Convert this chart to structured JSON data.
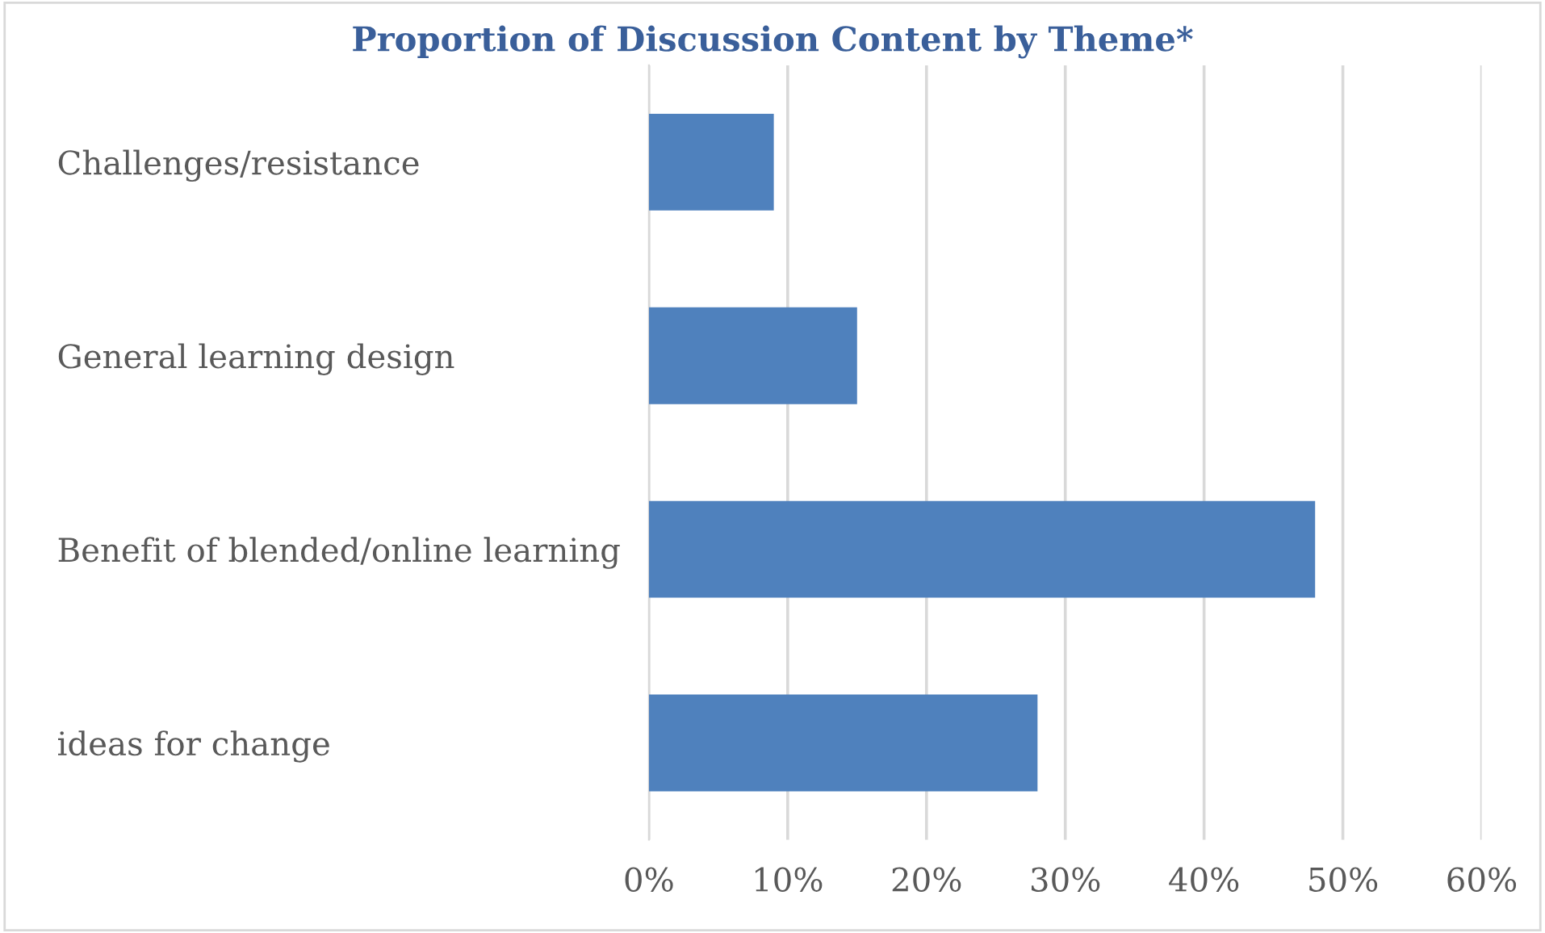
{
  "chart_data": {
    "type": "bar",
    "orientation": "horizontal",
    "title": "Proportion of Discussion Content by Theme*",
    "categories": [
      "Challenges/resistance",
      "General learning design",
      "Benefit of blended/online learning",
      "ideas for change"
    ],
    "values": [
      9,
      15,
      48,
      28
    ],
    "color": "#4f81bd",
    "xlim": [
      0,
      60
    ],
    "xticks": [
      {
        "value": 0,
        "label": "0%"
      },
      {
        "value": 10,
        "label": "10%"
      },
      {
        "value": 20,
        "label": "20%"
      },
      {
        "value": 30,
        "label": "30%"
      },
      {
        "value": 40,
        "label": "40%"
      },
      {
        "value": 50,
        "label": "50%"
      },
      {
        "value": 60,
        "label": "60%"
      }
    ],
    "grid": "x",
    "legend": false
  }
}
